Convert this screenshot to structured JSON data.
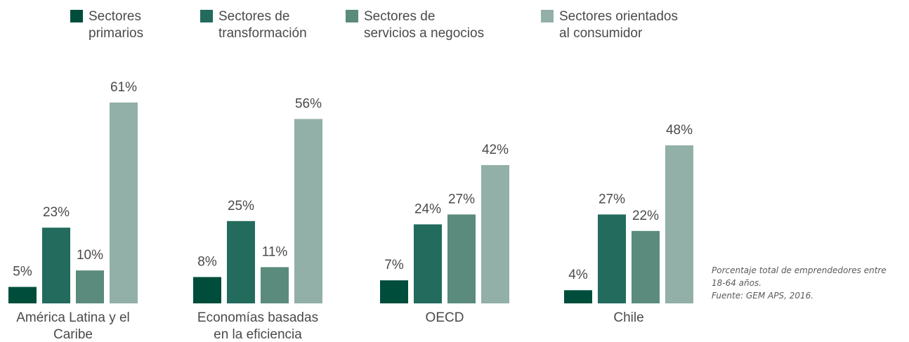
{
  "chart_data": {
    "type": "bar",
    "categories": [
      [
        "América Latina y el",
        "Caribe"
      ],
      [
        "Economías basadas",
        "en la eficiencia"
      ],
      [
        "OECD"
      ],
      [
        "Chile"
      ]
    ],
    "series": [
      {
        "name": [
          "Sectores",
          "primarios"
        ],
        "color": "#004d3c",
        "values": [
          5,
          8,
          7,
          4
        ],
        "labels": [
          "5%",
          "8%",
          "7%",
          "4%"
        ]
      },
      {
        "name": [
          "Sectores de",
          "transformación"
        ],
        "color": "#226b5d",
        "values": [
          23,
          25,
          24,
          27
        ],
        "labels": [
          "23%",
          "25%",
          "24%",
          "27%"
        ]
      },
      {
        "name": [
          "Sectores de",
          "servicios a negocios"
        ],
        "color": "#5a8b7d",
        "values": [
          10,
          11,
          27,
          22
        ],
        "labels": [
          "10%",
          "11%",
          "27%",
          "22%"
        ]
      },
      {
        "name": [
          "Sectores orientados",
          "al consumidor"
        ],
        "color": "#92afa8",
        "values": [
          61,
          56,
          42,
          48
        ],
        "labels": [
          "61%",
          "56%",
          "42%",
          "48%"
        ]
      }
    ],
    "ylim": [
      0,
      61
    ],
    "grid": false,
    "legend_position": "top",
    "note": [
      "Porcentaje total de emprendedores entre",
      "18-64 años.",
      "Fuente: GEM APS, 2016."
    ]
  }
}
